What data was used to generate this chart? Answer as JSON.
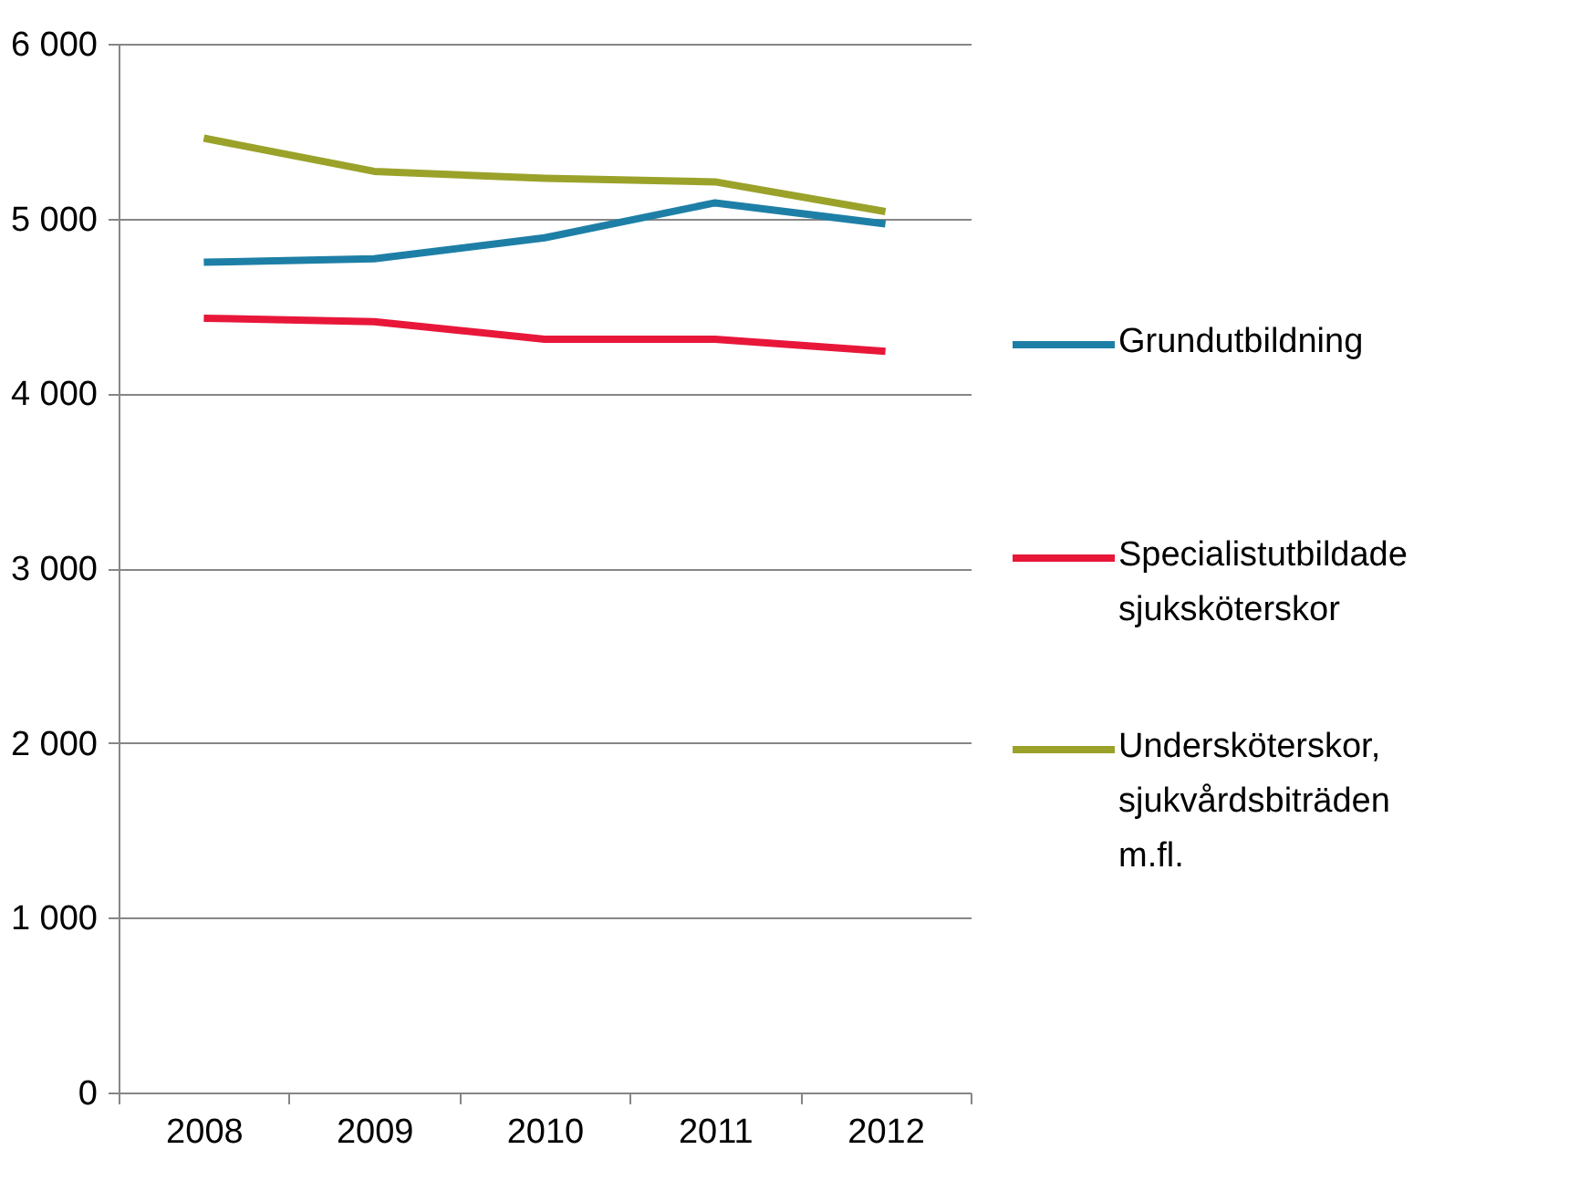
{
  "chart_data": {
    "type": "line",
    "categories": [
      "2008",
      "2009",
      "2010",
      "2011",
      "2012"
    ],
    "series": [
      {
        "name": "Grundutbildning",
        "color": "#1e7fa6",
        "values": [
          4750,
          4770,
          4890,
          5090,
          4970
        ]
      },
      {
        "name": "Specialistutbildade sjuksköterskor",
        "color": "#e8173a",
        "values": [
          4430,
          4410,
          4310,
          4310,
          4240
        ]
      },
      {
        "name": "Undersköterskor, sjukvårdsbiträden m.fl.",
        "color": "#9ba22a",
        "values": [
          5460,
          5270,
          5230,
          5210,
          5040
        ]
      }
    ],
    "ylim": [
      0,
      6000
    ],
    "yticks": [
      {
        "value": 0,
        "label": "0"
      },
      {
        "value": 1000,
        "label": "1 000"
      },
      {
        "value": 2000,
        "label": "2 000"
      },
      {
        "value": 3000,
        "label": "3 000"
      },
      {
        "value": 4000,
        "label": "4 000"
      },
      {
        "value": 5000,
        "label": "5 000"
      },
      {
        "value": 6000,
        "label": "6 000"
      }
    ],
    "grid": "y",
    "legend": "right",
    "marker": "none",
    "line_style": "solid"
  }
}
